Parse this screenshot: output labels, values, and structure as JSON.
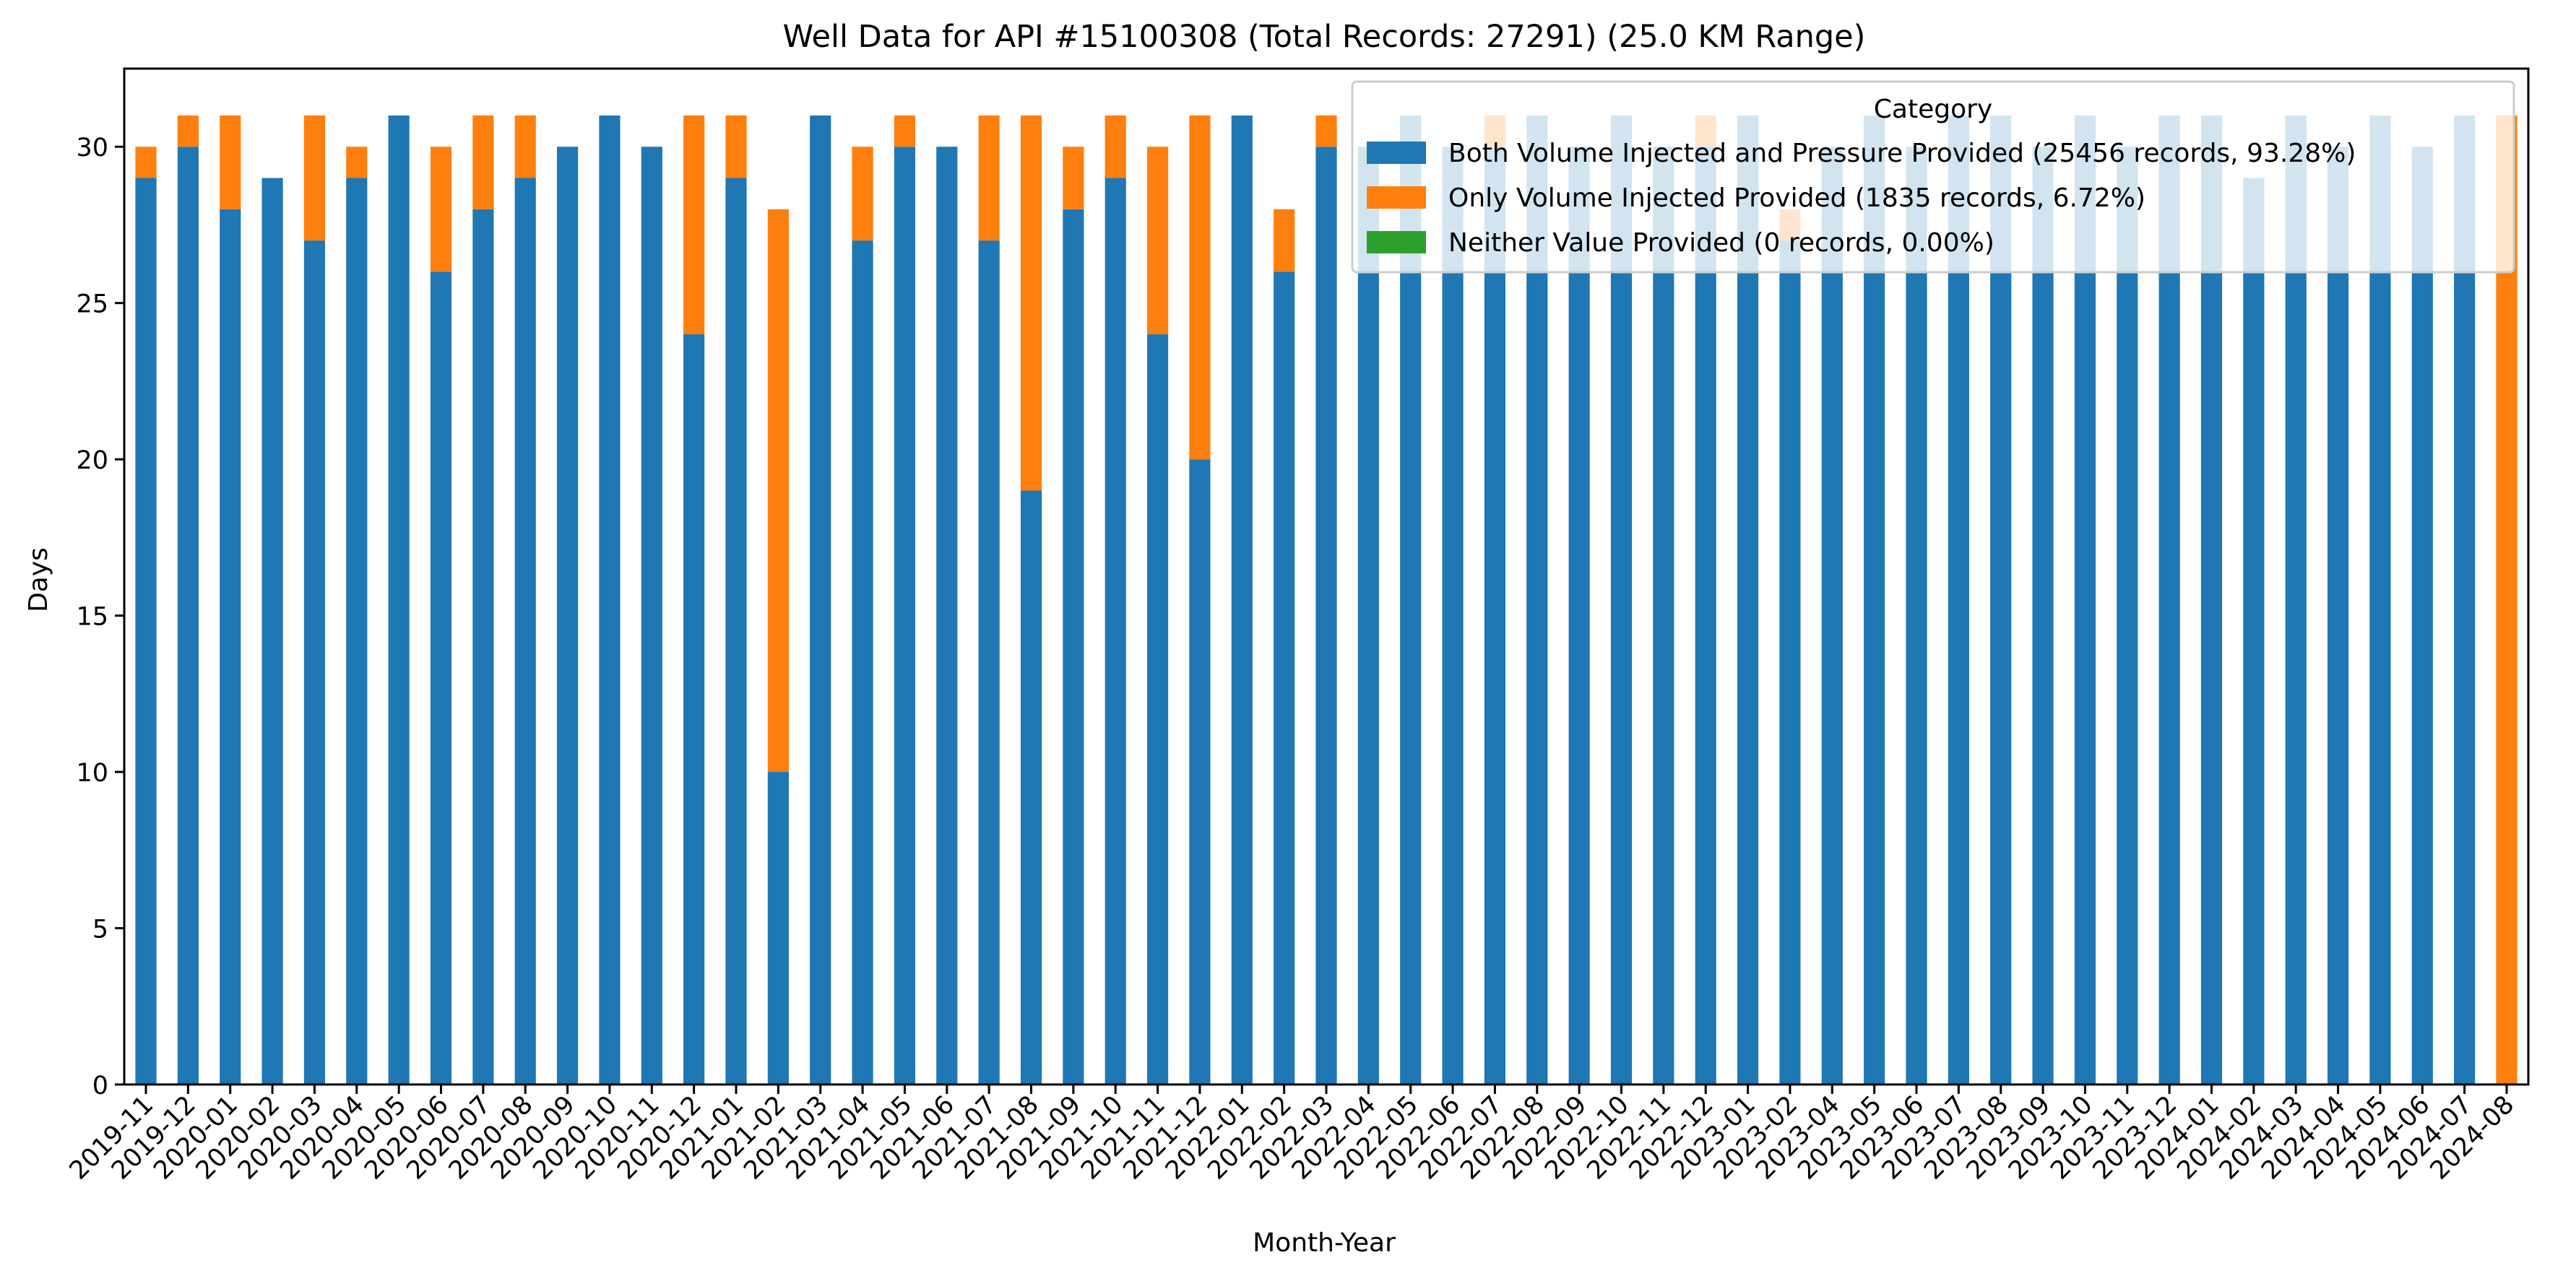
{
  "chart_data": {
    "type": "bar",
    "stacked": true,
    "title": "Well Data for API #15100308 (Total Records: 27291) (25.0 KM Range)",
    "xlabel": "Month-Year",
    "ylabel": "Days",
    "ylim": [
      0,
      32.5
    ],
    "yticks": [
      0,
      5,
      10,
      15,
      20,
      25,
      30
    ],
    "grid": false,
    "legend": {
      "title": "Category",
      "placement": "top-right",
      "entries": [
        "Both Volume Injected and Pressure Provided (25456 records, 93.28%)",
        "Only Volume Injected Provided (1835 records, 6.72%)",
        "Neither Value Provided (0 records, 0.00%)"
      ]
    },
    "categories": [
      "2019-11",
      "2019-12",
      "2020-01",
      "2020-02",
      "2020-03",
      "2020-04",
      "2020-05",
      "2020-06",
      "2020-07",
      "2020-08",
      "2020-09",
      "2020-10",
      "2020-11",
      "2020-12",
      "2021-01",
      "2021-02",
      "2021-03",
      "2021-04",
      "2021-05",
      "2021-06",
      "2021-07",
      "2021-08",
      "2021-09",
      "2021-10",
      "2021-11",
      "2021-12",
      "2022-01",
      "2022-02",
      "2022-03",
      "2022-04",
      "2022-05",
      "2022-06",
      "2022-07",
      "2022-08",
      "2022-09",
      "2022-10",
      "2022-11",
      "2022-12",
      "2023-01",
      "2023-02",
      "2023-04",
      "2023-05",
      "2023-06",
      "2023-07",
      "2023-08",
      "2023-09",
      "2023-10",
      "2023-11",
      "2023-12",
      "2024-01",
      "2024-02",
      "2024-03",
      "2024-04",
      "2024-05",
      "2024-06",
      "2024-07",
      "2024-08"
    ],
    "series": [
      {
        "name": "Both Volume Injected and Pressure Provided (25456 records, 93.28%)",
        "color": "#1f77b4",
        "values": [
          29,
          30,
          28,
          29,
          27,
          29,
          31,
          26,
          28,
          29,
          30,
          31,
          30,
          24,
          29,
          10,
          31,
          27,
          30,
          30,
          27,
          19,
          28,
          29,
          24,
          20,
          31,
          26,
          30,
          30,
          31,
          30,
          30,
          31,
          30,
          31,
          30,
          30,
          31,
          27,
          30,
          31,
          30,
          31,
          31,
          30,
          31,
          30,
          31,
          31,
          29,
          31,
          30,
          31,
          30,
          31,
          0
        ]
      },
      {
        "name": "Only Volume Injected Provided (1835 records, 6.72%)",
        "color": "#ff7f0e",
        "values": [
          1,
          1,
          3,
          0,
          4,
          1,
          0,
          4,
          3,
          2,
          0,
          0,
          0,
          7,
          2,
          18,
          0,
          3,
          1,
          0,
          4,
          12,
          2,
          2,
          6,
          11,
          0,
          2,
          1,
          0,
          0,
          0,
          1,
          0,
          0,
          0,
          0,
          1,
          0,
          1,
          0,
          0,
          0,
          0,
          0,
          0,
          0,
          0,
          0,
          0,
          0,
          0,
          0,
          0,
          0,
          0,
          31
        ]
      },
      {
        "name": "Neither Value Provided (0 records, 0.00%)",
        "color": "#2ca02c",
        "values": [
          0,
          0,
          0,
          0,
          0,
          0,
          0,
          0,
          0,
          0,
          0,
          0,
          0,
          0,
          0,
          0,
          0,
          0,
          0,
          0,
          0,
          0,
          0,
          0,
          0,
          0,
          0,
          0,
          0,
          0,
          0,
          0,
          0,
          0,
          0,
          0,
          0,
          0,
          0,
          0,
          0,
          0,
          0,
          0,
          0,
          0,
          0,
          0,
          0,
          0,
          0,
          0,
          0,
          0,
          0,
          0,
          0
        ]
      }
    ]
  }
}
